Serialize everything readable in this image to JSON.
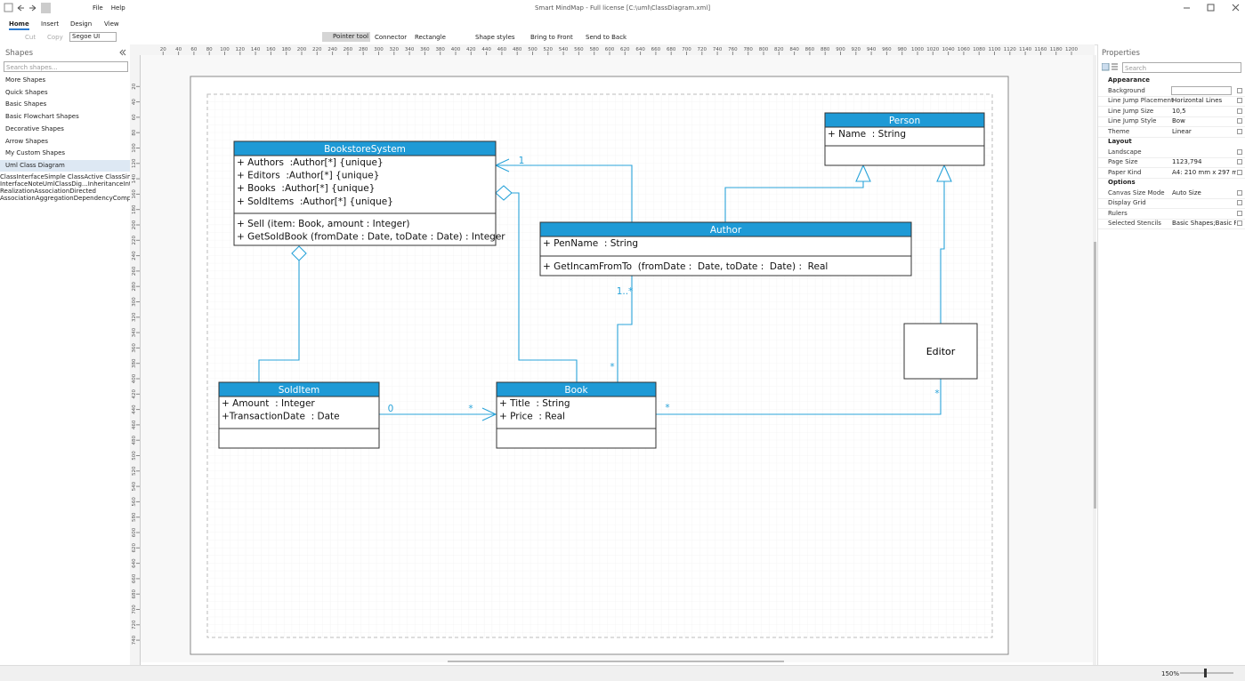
{
  "title_bar": {
    "title": "Smart MindMap - Full license [C:\\uml\\ClassDiagram.xml]",
    "menu": [
      "File",
      "Help"
    ]
  },
  "ribbon": {
    "tabs": [
      "Home",
      "Insert",
      "Design",
      "View"
    ],
    "tools": [
      "Cut",
      "Copy",
      "Segoe UI",
      "Pointer tool",
      "Connector",
      "Rectangle",
      "Shape styles",
      "Bring to Front",
      "Send to Back"
    ]
  },
  "ruler": {
    "horizontal": [
      20,
      40,
      60,
      80,
      100,
      120,
      140,
      160,
      180,
      200,
      220,
      240,
      260,
      280,
      300,
      320,
      340,
      360,
      380,
      400,
      420,
      440,
      460,
      480,
      500,
      520,
      540,
      560,
      580,
      600,
      620,
      640,
      660,
      680,
      700,
      720,
      740,
      760,
      780,
      800,
      820,
      840,
      860,
      880,
      900,
      920,
      940,
      960,
      980,
      1000,
      1020,
      1040,
      1060,
      1080,
      1100,
      1120,
      1140,
      1160,
      1180,
      1200
    ],
    "vertical": [
      20,
      40,
      60,
      80,
      100,
      120,
      140,
      160,
      180,
      200,
      220,
      240,
      260,
      280,
      300,
      320,
      340,
      360,
      380,
      400,
      420,
      440,
      460,
      480,
      500,
      520,
      540,
      560,
      580,
      600,
      620,
      640,
      660,
      680,
      700,
      720,
      740
    ]
  },
  "shapes_panel": {
    "title": "Shapes",
    "search": "Search shapes...",
    "categories": [
      "More Shapes",
      "Quick Shapes",
      "Basic Shapes",
      "Basic Flowchart Shapes",
      "Decorative Shapes",
      "Arrow Shapes",
      "My Custom Shapes",
      "Uml Class Diagram"
    ],
    "stencils": [
      "Class",
      "Interface",
      "Simple Class",
      "Active Class",
      "Simple Interface",
      "Note",
      "UmlClassDig...",
      "Inheritance",
      "Interface Realization",
      "Association",
      "Directed Association",
      "Aggregation",
      "Dependency",
      "Composition"
    ]
  },
  "diagram": {
    "classes": [
      {
        "name": "BookstoreSystem",
        "attributes": [
          "+ Authors  :Author[*] {unique}",
          "+ Editors  :Author[*] {unique}",
          "+ Books  :Author[*] {unique}",
          "+ SoldItems  :Author[*] {unique}"
        ],
        "operations": [
          "+ Sell (item: Book, amount : Integer)",
          "+ GetSoldBook (fromDate : Date, toDate : Date) : Integer"
        ]
      },
      {
        "name": "Person",
        "attributes": [
          "+ Name  : String"
        ],
        "operations": []
      },
      {
        "name": "Author",
        "attributes": [
          "+ PenName  : String"
        ],
        "operations": [
          "+ GetIncamFromTo  (fromDate :  Date, toDate :  Date) :  Real"
        ]
      },
      {
        "name": "SoldItem",
        "attributes": [
          "+ Amount  : Integer",
          "+TransactionDate  : Date"
        ],
        "operations": []
      },
      {
        "name": "Book",
        "attributes": [
          "+ Title  : String",
          "+ Price  : Real"
        ],
        "operations": []
      }
    ],
    "editor": "Editor",
    "labels": [
      "1",
      "1..*",
      "*",
      "0",
      "*",
      "*",
      "*"
    ]
  },
  "properties": {
    "title": "Properties",
    "search": "Search",
    "groups": [
      {
        "name": "Appearance",
        "rows": [
          {
            "name": "Background"
          },
          {
            "name": "Line Jump Placement",
            "value": "Horizontal Lines"
          },
          {
            "name": "Line Jump Size",
            "value": "10,5",
            "expandable": true
          },
          {
            "name": "Line Jump Style",
            "value": "Bow"
          },
          {
            "name": "Theme",
            "value": "Linear"
          }
        ]
      },
      {
        "name": "Layout",
        "rows": [
          {
            "name": "Landscape",
            "checked": true
          },
          {
            "name": "Page Size",
            "value": "1123,794",
            "expandable": true
          },
          {
            "name": "Paper Kind",
            "value": "A4:  210 mm x 297 m..."
          }
        ]
      },
      {
        "name": "Options",
        "rows": [
          {
            "name": "Canvas Size Mode",
            "value": "Auto Size"
          },
          {
            "name": "Display Grid",
            "checked": true
          },
          {
            "name": "Rulers",
            "checked": true
          },
          {
            "name": "Selected Stencils",
            "value": "Basic Shapes;Basic Fl..."
          }
        ]
      }
    ]
  },
  "status": {
    "zoom": "150%"
  }
}
